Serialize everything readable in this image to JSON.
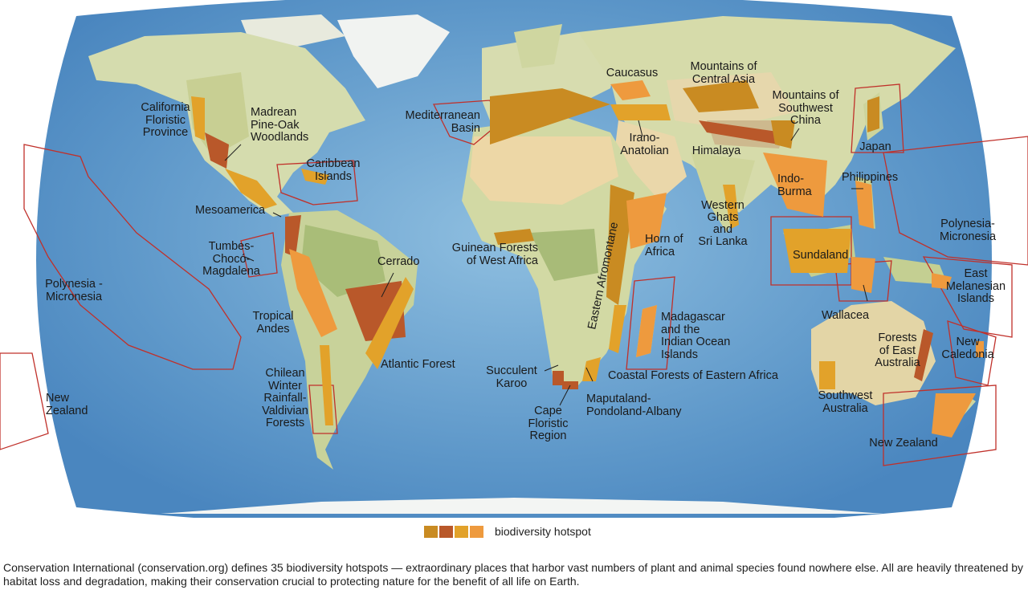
{
  "colors": {
    "ocean": "#4a86bf",
    "ocean_light": "#8cb8d8",
    "land": "#d8dcae",
    "desert": "#ecd4a2",
    "ice": "#f4f6f4",
    "hotspot_outline": "#c0302a",
    "hotspot_shades": [
      "#c98b22",
      "#b9582a",
      "#e2a22a",
      "#ee9a3e"
    ]
  },
  "hotspot_labels": [
    {
      "id": "california",
      "text": "California\nFloristic\nProvince"
    },
    {
      "id": "madrean",
      "text": "Madrean\nPine-Oak\nWoodlands"
    },
    {
      "id": "caribbean",
      "text": "Caribbean\nIslands"
    },
    {
      "id": "mesoamerica",
      "text": "Mesoamerica"
    },
    {
      "id": "tumbes",
      "text": "Tumbes-\nChocó-\nMagdalena"
    },
    {
      "id": "polynesia-west",
      "text": "Polynesia -\nMicronesia"
    },
    {
      "id": "tropical-andes",
      "text": "Tropical\nAndes"
    },
    {
      "id": "chilean",
      "text": "Chilean\nWinter\nRainfall-\nValdivian\nForests"
    },
    {
      "id": "nz-west",
      "text": "New\nZealand"
    },
    {
      "id": "cerrado",
      "text": "Cerrado"
    },
    {
      "id": "atlantic-forest",
      "text": "Atlantic Forest"
    },
    {
      "id": "mediterranean",
      "text": "Mediterranean\nBasin"
    },
    {
      "id": "guinean",
      "text": "Guinean Forests\nof West Africa"
    },
    {
      "id": "succulent-karoo",
      "text": "Succulent\nKaroo"
    },
    {
      "id": "cape",
      "text": "Cape\nFloristic\nRegion"
    },
    {
      "id": "maputaland",
      "text": "Maputaland-\nPondoland-Albany"
    },
    {
      "id": "coastal-forests",
      "text": "Coastal Forests of Eastern Africa"
    },
    {
      "id": "madagascar",
      "text": "Madagascar\nand the\nIndian Ocean\nIslands"
    },
    {
      "id": "horn-of-africa",
      "text": "Horn of\nAfrica"
    },
    {
      "id": "eastern-afromontane",
      "text": "Eastern Afromontane"
    },
    {
      "id": "caucasus",
      "text": "Caucasus"
    },
    {
      "id": "irano-anatolian",
      "text": "Irano-\nAnatolian"
    },
    {
      "id": "mountains-central-asia",
      "text": "Mountains of\nCentral Asia"
    },
    {
      "id": "himalaya",
      "text": "Himalaya"
    },
    {
      "id": "mountains-sw-china",
      "text": "Mountains of\nSouthwest\nChina"
    },
    {
      "id": "western-ghats",
      "text": "Western\nGhats\nand\nSri Lanka"
    },
    {
      "id": "indo-burma",
      "text": "Indo-\nBurma"
    },
    {
      "id": "japan",
      "text": "Japan"
    },
    {
      "id": "philippines",
      "text": "Philippines"
    },
    {
      "id": "sundaland",
      "text": "Sundaland"
    },
    {
      "id": "wallacea",
      "text": "Wallacea"
    },
    {
      "id": "polynesia-east",
      "text": "Polynesia-\nMicronesia"
    },
    {
      "id": "east-melanesian",
      "text": "East\nMelanesian\nIslands"
    },
    {
      "id": "new-caledonia",
      "text": "New\nCaledonia"
    },
    {
      "id": "forests-east-australia",
      "text": "Forests\nof East\nAustralia"
    },
    {
      "id": "southwest-australia",
      "text": "Southwest\nAustralia"
    },
    {
      "id": "nz-east",
      "text": "New Zealand"
    }
  ],
  "legend": {
    "label": "biodiversity hotspot",
    "swatch_icon": "color-swatch-icon"
  },
  "caption": "Conservation International (conservation.org) defines 35 biodiversity hotspots — extraordinary places that harbor vast numbers of plant and animal species found nowhere else. All are heavily threatened by habitat loss and degradation, making their conservation crucial to protecting nature for the benefit of all life on Earth."
}
